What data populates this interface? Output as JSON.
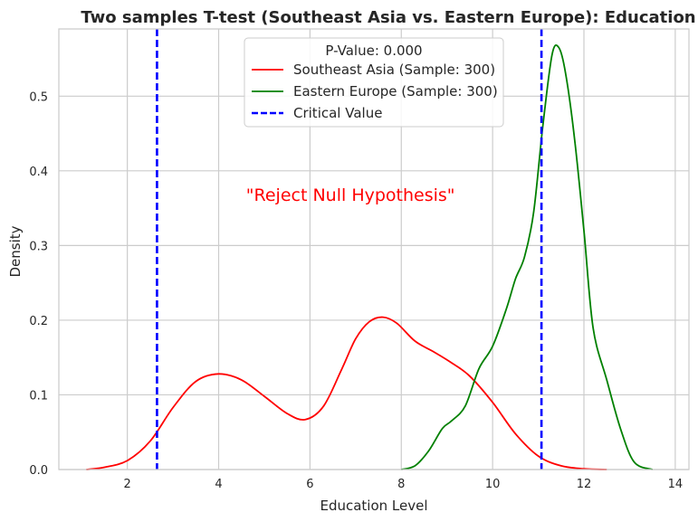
{
  "chart_data": {
    "type": "line",
    "title": "Two samples T-test (Southeast Asia vs. Eastern Europe): Education",
    "xlabel": "Education Level",
    "ylabel": "Density",
    "xlim": [
      0.5,
      14.3
    ],
    "ylim": [
      0,
      0.59
    ],
    "xticks": [
      2,
      4,
      6,
      8,
      10,
      12,
      14
    ],
    "yticks": [
      0.0,
      0.1,
      0.2,
      0.3,
      0.4,
      0.5
    ],
    "xtick_labels": [
      "2",
      "4",
      "6",
      "8",
      "10",
      "12",
      "14"
    ],
    "ytick_labels": [
      "0.0",
      "0.1",
      "0.2",
      "0.3",
      "0.4",
      "0.5"
    ],
    "grid": true,
    "legend": {
      "title": "P-Value: 0.000",
      "placement": "top-center",
      "entries": [
        "Southeast Asia (Sample: 300)",
        "Eastern Europe (Sample: 300)",
        "Critical Value"
      ]
    },
    "annotation": {
      "text": "\"Reject Null Hypothesis\"",
      "x": 4.6,
      "y": 0.36,
      "color": "#ff0000"
    },
    "series": [
      {
        "name": "Southeast Asia (Sample: 300)",
        "color": "#ff0000",
        "x": [
          1.1,
          1.5,
          2.0,
          2.5,
          3.0,
          3.5,
          4.0,
          4.5,
          5.0,
          5.5,
          5.9,
          6.3,
          6.7,
          7.0,
          7.3,
          7.6,
          7.9,
          8.3,
          8.7,
          9.1,
          9.5,
          10.0,
          10.5,
          11.0,
          11.5,
          12.0,
          12.5
        ],
        "y": [
          0.0,
          0.003,
          0.012,
          0.038,
          0.083,
          0.118,
          0.128,
          0.12,
          0.098,
          0.075,
          0.067,
          0.085,
          0.135,
          0.175,
          0.198,
          0.204,
          0.196,
          0.172,
          0.158,
          0.143,
          0.125,
          0.09,
          0.048,
          0.018,
          0.005,
          0.001,
          0.0
        ]
      },
      {
        "name": "Eastern Europe (Sample: 300)",
        "color": "#008000",
        "x": [
          8.0,
          8.3,
          8.6,
          8.9,
          9.1,
          9.4,
          9.7,
          10.0,
          10.3,
          10.5,
          10.7,
          10.9,
          11.1,
          11.3,
          11.45,
          11.6,
          11.8,
          12.0,
          12.2,
          12.5,
          12.8,
          13.1,
          13.5
        ],
        "y": [
          0.0,
          0.005,
          0.025,
          0.055,
          0.065,
          0.085,
          0.135,
          0.165,
          0.215,
          0.255,
          0.285,
          0.345,
          0.46,
          0.555,
          0.565,
          0.53,
          0.44,
          0.32,
          0.19,
          0.12,
          0.055,
          0.01,
          0.0
        ]
      },
      {
        "name": "Critical Value",
        "color": "#0000ff",
        "style": "dashed",
        "vlines": [
          2.65,
          11.07
        ]
      }
    ]
  }
}
